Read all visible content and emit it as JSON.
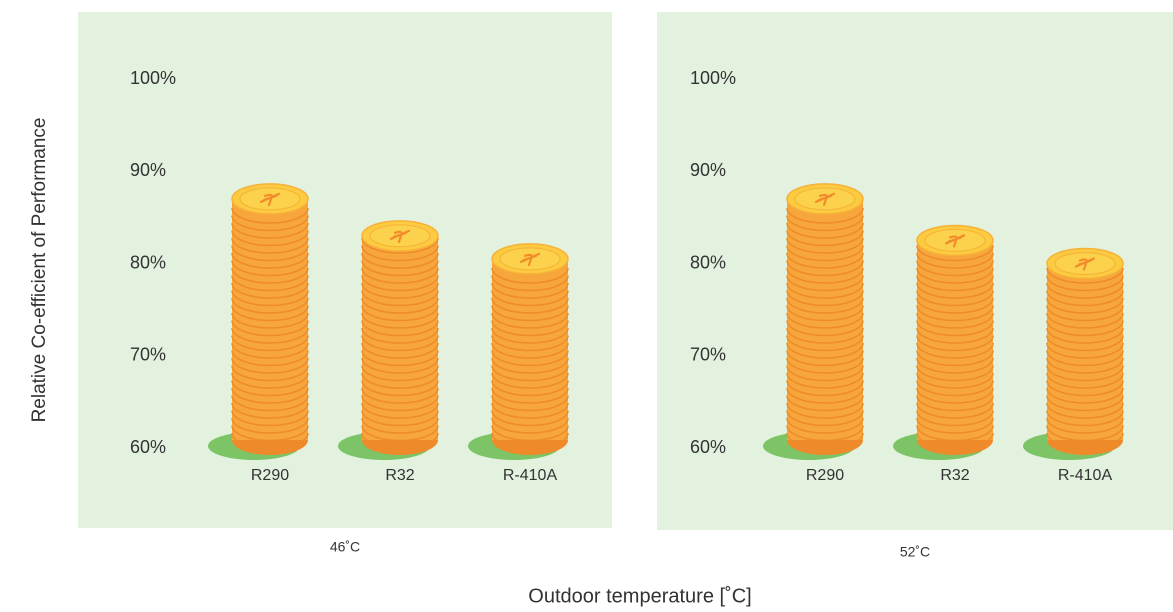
{
  "ylabel": "Relative Co-efficient of Performance",
  "xlabel": "Outdoor temperature [˚C]",
  "chart_data": [
    {
      "type": "bar",
      "title": "46˚C",
      "categories": [
        "R290",
        "R32",
        "R-410A"
      ],
      "values": [
        87,
        83,
        80.5
      ],
      "ylim": [
        60,
        100
      ],
      "yticks": [
        {
          "value": 60,
          "label": "60%"
        },
        {
          "value": 70,
          "label": "70%"
        },
        {
          "value": 80,
          "label": "80%"
        },
        {
          "value": 90,
          "label": "90%"
        },
        {
          "value": 100,
          "label": "100%"
        }
      ],
      "color": "#f7a63c",
      "grid": false
    },
    {
      "type": "bar",
      "title": "52˚C",
      "categories": [
        "R290",
        "R32",
        "R-410A"
      ],
      "values": [
        87,
        82.5,
        80
      ],
      "ylim": [
        60,
        100
      ],
      "yticks": [
        {
          "value": 60,
          "label": "60%"
        },
        {
          "value": 70,
          "label": "70%"
        },
        {
          "value": 80,
          "label": "80%"
        },
        {
          "value": 90,
          "label": "90%"
        },
        {
          "value": 100,
          "label": "100%"
        }
      ],
      "color": "#f7a63c",
      "grid": false
    }
  ]
}
